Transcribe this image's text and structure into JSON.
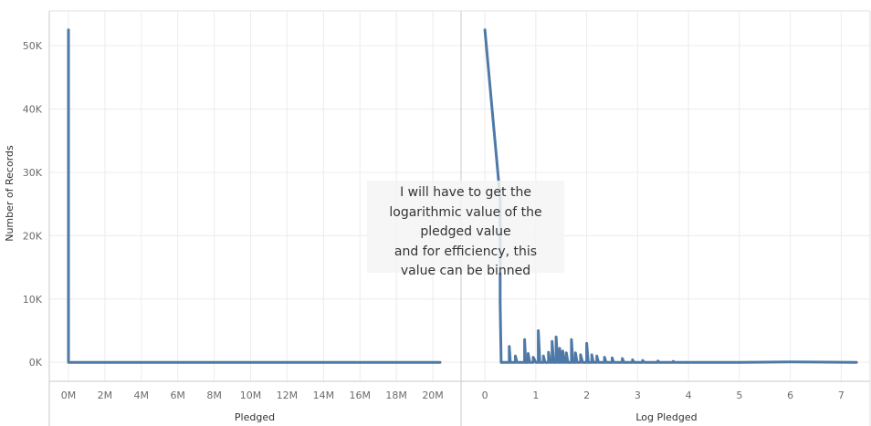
{
  "chart_data": [
    {
      "type": "line",
      "xlabel": "Pledged",
      "ylabel": "Number of Records",
      "x_tick_labels": [
        "0M",
        "2M",
        "4M",
        "6M",
        "8M",
        "10M",
        "12M",
        "14M",
        "16M",
        "18M",
        "20M"
      ],
      "y_tick_labels": [
        "0K",
        "10K",
        "20K",
        "30K",
        "40K",
        "50K"
      ],
      "xlim": [
        -1000000,
        21500000
      ],
      "ylim": [
        -3000,
        55500
      ],
      "grid": true,
      "series": [
        {
          "color": "#4e79a7",
          "points": [
            [
              0,
              52500
            ],
            [
              0,
              0
            ],
            [
              0,
              4000
            ],
            [
              0,
              0
            ],
            [
              2000000,
              0
            ],
            [
              20400000,
              0
            ]
          ]
        }
      ]
    },
    {
      "type": "line",
      "xlabel": "Log Pledged",
      "ylabel": "",
      "x_tick_labels": [
        "0",
        "1",
        "2",
        "3",
        "4",
        "5",
        "6",
        "7"
      ],
      "ylim": [
        -3000,
        55500
      ],
      "xlim": [
        -0.45,
        7.55
      ],
      "grid": true,
      "series": [
        {
          "color": "#4e79a7",
          "points": [
            [
              0,
              52500
            ],
            [
              0.3,
              26000
            ],
            [
              0.3,
              9500
            ],
            [
              0.32,
              0
            ],
            [
              0.48,
              0
            ],
            [
              0.48,
              2500
            ],
            [
              0.5,
              0
            ],
            [
              0.6,
              0
            ],
            [
              0.6,
              1000
            ],
            [
              0.63,
              0
            ],
            [
              0.78,
              0
            ],
            [
              0.78,
              3600
            ],
            [
              0.8,
              0
            ],
            [
              0.85,
              0
            ],
            [
              0.85,
              1400
            ],
            [
              0.88,
              0
            ],
            [
              0.95,
              0
            ],
            [
              0.95,
              800
            ],
            [
              1.0,
              0
            ],
            [
              1.05,
              0
            ],
            [
              1.05,
              5000
            ],
            [
              1.08,
              0
            ],
            [
              1.15,
              0
            ],
            [
              1.15,
              1000
            ],
            [
              1.18,
              0
            ],
            [
              1.25,
              0
            ],
            [
              1.25,
              1600
            ],
            [
              1.28,
              0
            ],
            [
              1.32,
              0
            ],
            [
              1.32,
              3300
            ],
            [
              1.35,
              0
            ],
            [
              1.4,
              0
            ],
            [
              1.4,
              4000
            ],
            [
              1.43,
              0
            ],
            [
              1.47,
              0
            ],
            [
              1.47,
              2200
            ],
            [
              1.5,
              0
            ],
            [
              1.53,
              0
            ],
            [
              1.53,
              1800
            ],
            [
              1.56,
              0
            ],
            [
              1.6,
              0
            ],
            [
              1.6,
              1500
            ],
            [
              1.63,
              0
            ],
            [
              1.7,
              0
            ],
            [
              1.7,
              3600
            ],
            [
              1.73,
              0
            ],
            [
              1.78,
              0
            ],
            [
              1.78,
              1500
            ],
            [
              1.81,
              0
            ],
            [
              1.88,
              0
            ],
            [
              1.88,
              1200
            ],
            [
              1.92,
              0
            ],
            [
              2.0,
              0
            ],
            [
              2.0,
              3000
            ],
            [
              2.03,
              0
            ],
            [
              2.1,
              0
            ],
            [
              2.1,
              1200
            ],
            [
              2.13,
              0
            ],
            [
              2.2,
              0
            ],
            [
              2.2,
              1000
            ],
            [
              2.23,
              0
            ],
            [
              2.35,
              0
            ],
            [
              2.35,
              800
            ],
            [
              2.38,
              0
            ],
            [
              2.5,
              0
            ],
            [
              2.5,
              700
            ],
            [
              2.53,
              0
            ],
            [
              2.7,
              0
            ],
            [
              2.7,
              600
            ],
            [
              2.73,
              0
            ],
            [
              2.9,
              0
            ],
            [
              2.9,
              400
            ],
            [
              2.93,
              0
            ],
            [
              3.1,
              0
            ],
            [
              3.1,
              300
            ],
            [
              3.13,
              0
            ],
            [
              3.4,
              0
            ],
            [
              3.4,
              200
            ],
            [
              3.43,
              0
            ],
            [
              3.7,
              0
            ],
            [
              3.7,
              150
            ],
            [
              3.73,
              0
            ],
            [
              5.0,
              0
            ],
            [
              6.0,
              50
            ],
            [
              7.3,
              0
            ]
          ]
        }
      ]
    }
  ],
  "annotation": {
    "lines": [
      "I will have to get the",
      "logarithmic value of the",
      "pledged value",
      "and for efficiency, this",
      "value can be binned"
    ]
  }
}
